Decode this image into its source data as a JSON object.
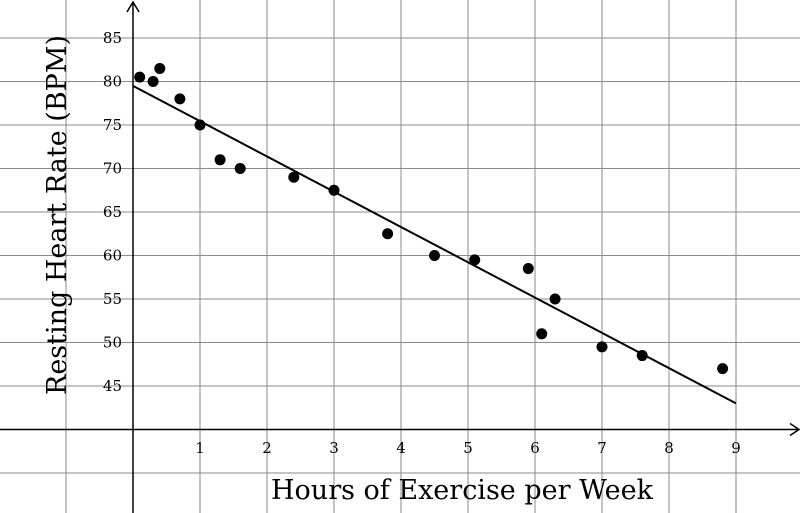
{
  "chart_data": {
    "type": "scatter",
    "title": "",
    "xlabel": "Hours of Exercise per Week",
    "ylabel": "Resting Heart Rate (BPM)",
    "xlim": [
      -2,
      10
    ],
    "ylim": [
      35,
      88
    ],
    "grid": true,
    "x_ticks": [
      1,
      2,
      3,
      4,
      5,
      6,
      7,
      8,
      9
    ],
    "y_ticks": [
      45,
      50,
      55,
      60,
      65,
      70,
      75,
      80,
      85
    ],
    "points": [
      {
        "x": 0.1,
        "y": 80.5
      },
      {
        "x": 0.3,
        "y": 80
      },
      {
        "x": 0.4,
        "y": 81.5
      },
      {
        "x": 0.7,
        "y": 78
      },
      {
        "x": 1.0,
        "y": 75
      },
      {
        "x": 1.3,
        "y": 71
      },
      {
        "x": 1.6,
        "y": 70
      },
      {
        "x": 2.4,
        "y": 69
      },
      {
        "x": 3.0,
        "y": 67.5
      },
      {
        "x": 3.8,
        "y": 62.5
      },
      {
        "x": 4.5,
        "y": 60
      },
      {
        "x": 5.1,
        "y": 59.5
      },
      {
        "x": 5.9,
        "y": 58.5
      },
      {
        "x": 6.1,
        "y": 51
      },
      {
        "x": 6.3,
        "y": 55
      },
      {
        "x": 7.0,
        "y": 49.5
      },
      {
        "x": 7.6,
        "y": 48.5
      },
      {
        "x": 8.8,
        "y": 47
      }
    ],
    "trend_line": {
      "x1": 0,
      "y1": 79.5,
      "x2": 9,
      "y2": 43
    }
  }
}
